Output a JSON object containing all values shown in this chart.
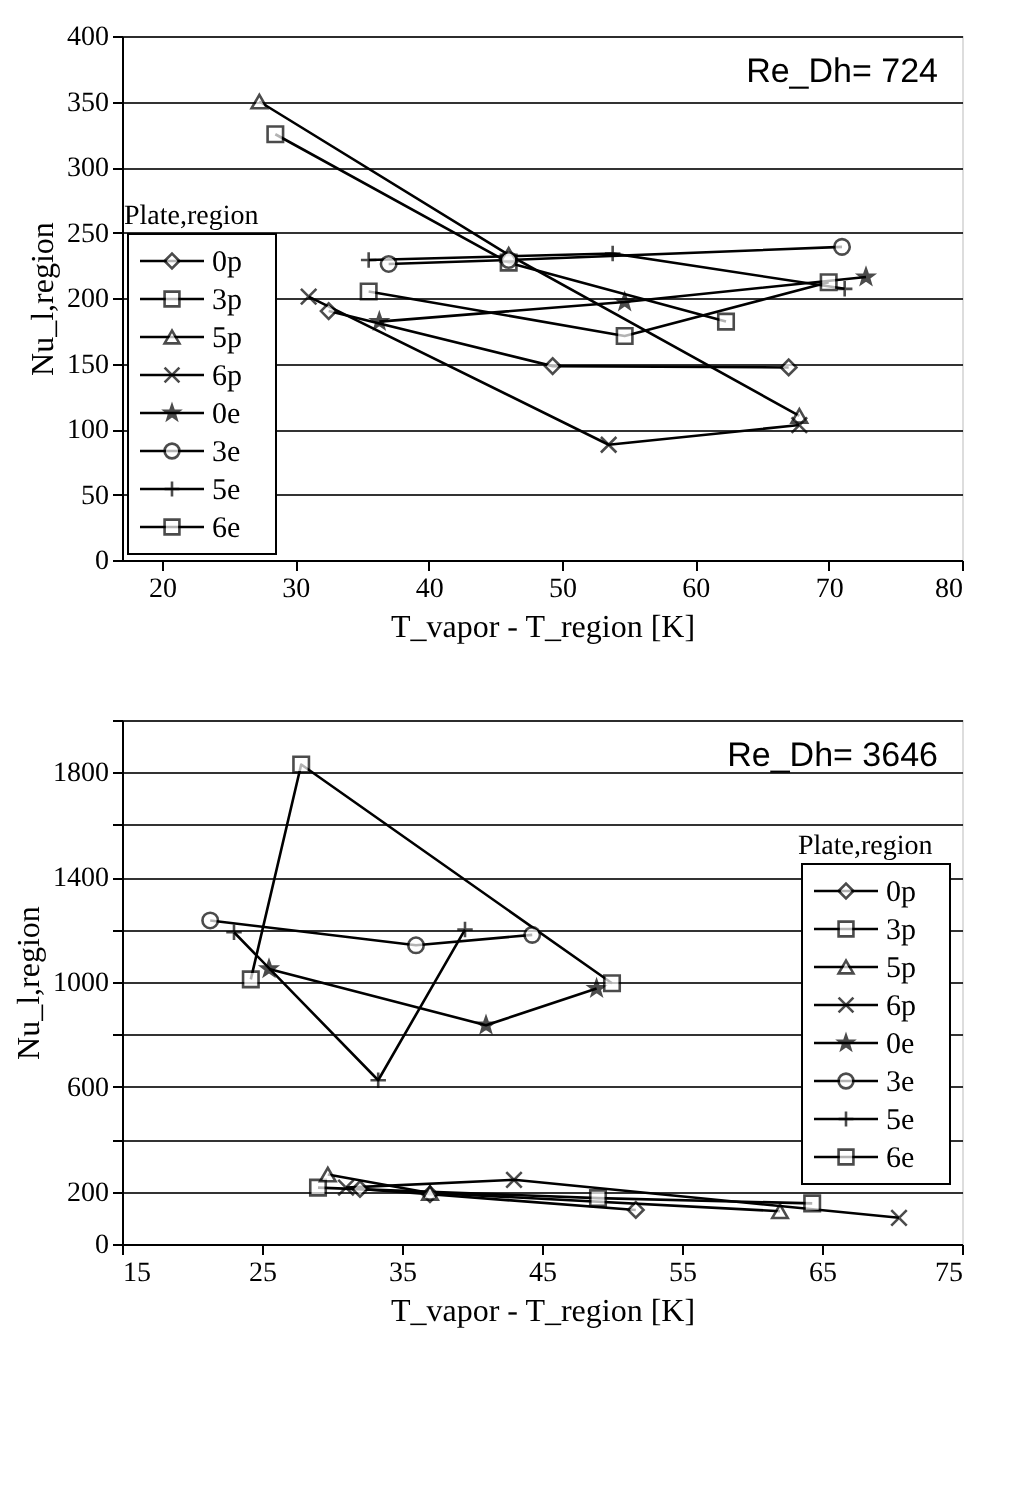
{
  "chart_data": [
    {
      "type": "line",
      "xlabel": "T_vapor - T_region [K]",
      "ylabel": "Nu_l,region",
      "annotations": [
        "Re_Dh= 724"
      ],
      "legend_title": "Plate,region",
      "legend": "left",
      "grid": "y",
      "xlim": [
        17,
        80
      ],
      "xticks": [
        20,
        30,
        40,
        50,
        60,
        70,
        80
      ],
      "ylim": [
        0,
        400
      ],
      "yticks": [
        0,
        50,
        100,
        150,
        200,
        250,
        300,
        350,
        400
      ],
      "series": [
        {
          "name": "0p",
          "color": "#000000",
          "marker": "diamond",
          "x": [
            32.5,
            49.3,
            67
          ],
          "values": [
            190,
            148,
            147
          ]
        },
        {
          "name": "3p",
          "color": "#000000",
          "marker": "square",
          "x": [
            28.5,
            46,
            62.3
          ],
          "values": [
            325,
            227,
            182
          ]
        },
        {
          "name": "5p",
          "color": "#000000",
          "marker": "triangle",
          "x": [
            27.3,
            46,
            67.8
          ],
          "values": [
            350,
            233,
            110
          ]
        },
        {
          "name": "6p",
          "color": "#000000",
          "marker": "cross",
          "x": [
            31,
            53.5,
            67.8
          ],
          "values": [
            201,
            88,
            103
          ]
        },
        {
          "name": "0e",
          "color": "#000000",
          "marker": "star",
          "x": [
            36.3,
            54.7,
            72.8
          ],
          "values": [
            182,
            197,
            216
          ]
        },
        {
          "name": "3e",
          "color": "#000000",
          "marker": "circle",
          "x": [
            37,
            46,
            71
          ],
          "values": [
            226,
            229,
            239
          ]
        },
        {
          "name": "5e",
          "color": "#000000",
          "marker": "plus",
          "x": [
            35.5,
            53.8,
            71.2
          ],
          "values": [
            229,
            234,
            207
          ]
        },
        {
          "name": "6e",
          "color": "#000000",
          "marker": "square",
          "x": [
            35.5,
            54.7,
            70
          ],
          "values": [
            205,
            171,
            212
          ]
        }
      ]
    },
    {
      "type": "line",
      "xlabel": "T_vapor - T_region [K]",
      "ylabel": "Nu_l,region",
      "annotations": [
        "Re_Dh= 3646"
      ],
      "legend_title": "Plate,region",
      "legend": "right",
      "grid": "y",
      "xlim": [
        15,
        75
      ],
      "xticks": [
        15,
        25,
        35,
        45,
        55,
        65,
        75
      ],
      "ylim": [
        0,
        2000
      ],
      "yticks": [
        0,
        200,
        {
          "value": 400,
          "label": null
        },
        600,
        {
          "value": 800,
          "label": null
        },
        1000,
        {
          "value": 1200,
          "label": null
        },
        1400,
        {
          "value": 1600,
          "label": null
        },
        1800,
        {
          "value": 2000,
          "label": null
        }
      ],
      "series": [
        {
          "name": "0p",
          "color": "#000000",
          "marker": "diamond",
          "x": [
            32,
            37,
            51.7
          ],
          "values": [
            210,
            190,
            130
          ]
        },
        {
          "name": "3p",
          "color": "#000000",
          "marker": "square",
          "x": [
            29,
            49,
            64.3
          ],
          "values": [
            215,
            175,
            155
          ]
        },
        {
          "name": "5p",
          "color": "#000000",
          "marker": "triangle",
          "x": [
            29.7,
            37,
            62
          ],
          "values": [
            265,
            195,
            125
          ]
        },
        {
          "name": "6p",
          "color": "#000000",
          "marker": "cross",
          "x": [
            31,
            43,
            70.5
          ],
          "values": [
            215,
            245,
            100
          ]
        },
        {
          "name": "0e",
          "color": "#000000",
          "marker": "star",
          "x": [
            25.5,
            41,
            48.9
          ],
          "values": [
            1050,
            835,
            975
          ]
        },
        {
          "name": "3e",
          "color": "#000000",
          "marker": "circle",
          "x": [
            21.3,
            36,
            44.3
          ],
          "values": [
            1235,
            1140,
            1180
          ]
        },
        {
          "name": "5e",
          "color": "#000000",
          "marker": "plus",
          "x": [
            23,
            33.3,
            39.5
          ],
          "values": [
            1190,
            625,
            1200
          ]
        },
        {
          "name": "6e",
          "color": "#000000",
          "marker": "square",
          "x": [
            24.2,
            27.8,
            50
          ],
          "values": [
            1010,
            1830,
            995
          ]
        }
      ]
    }
  ]
}
